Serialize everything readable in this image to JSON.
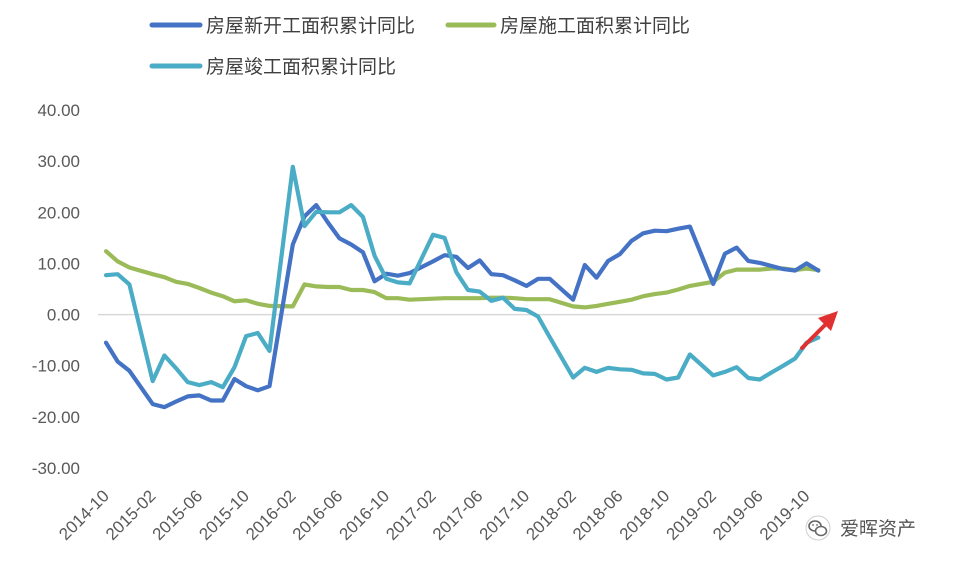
{
  "chart_data": {
    "type": "line",
    "title": "",
    "xlabel": "",
    "ylabel": "",
    "ylim": [
      -30,
      40
    ],
    "yticks": [
      "40.00",
      "30.00",
      "20.00",
      "10.00",
      "0.00",
      "-10.00",
      "-20.00",
      "-30.00"
    ],
    "x_tick_labels": [
      "2014-10",
      "2015-02",
      "2015-06",
      "2015-10",
      "2016-02",
      "2016-06",
      "2016-10",
      "2017-02",
      "2017-06",
      "2017-10",
      "2018-02",
      "2018-06",
      "2018-10",
      "2019-02",
      "2019-06",
      "2019-10"
    ],
    "x_start": "2014-10",
    "x_end": "2019-12",
    "grid": false,
    "legend": "top",
    "series": [
      {
        "name": "房屋新开工面积累计同比",
        "color": "#4472c4",
        "x": [
          "2014-10",
          "2014-11",
          "2014-12",
          "2015-02",
          "2015-03",
          "2015-04",
          "2015-05",
          "2015-06",
          "2015-07",
          "2015-08",
          "2015-09",
          "2015-10",
          "2015-11",
          "2015-12",
          "2016-02",
          "2016-03",
          "2016-04",
          "2016-05",
          "2016-06",
          "2016-07",
          "2016-08",
          "2016-09",
          "2016-10",
          "2016-11",
          "2016-12",
          "2017-02",
          "2017-03",
          "2017-04",
          "2017-05",
          "2017-06",
          "2017-07",
          "2017-08",
          "2017-09",
          "2017-10",
          "2017-11",
          "2017-12",
          "2018-02",
          "2018-03",
          "2018-04",
          "2018-05",
          "2018-06",
          "2018-07",
          "2018-08",
          "2018-09",
          "2018-10",
          "2018-11",
          "2018-12",
          "2019-02",
          "2019-03",
          "2019-04",
          "2019-05",
          "2019-06",
          "2019-07",
          "2019-08",
          "2019-09",
          "2019-10",
          "2019-11"
        ],
        "values": [
          -5.5,
          -9.2,
          -11.0,
          -17.5,
          -18.1,
          -17.0,
          -16.0,
          -15.8,
          -16.8,
          -16.8,
          -12.6,
          -14.0,
          -14.8,
          -14.0,
          13.7,
          19.2,
          21.4,
          18.0,
          14.9,
          13.7,
          12.2,
          6.5,
          8.0,
          7.6,
          8.1,
          10.4,
          11.6,
          11.3,
          9.1,
          10.6,
          7.9,
          7.7,
          6.7,
          5.6,
          7.0,
          7.0,
          2.9,
          9.7,
          7.2,
          10.5,
          11.8,
          14.4,
          15.9,
          16.4,
          16.3,
          16.8,
          17.2,
          6.0,
          11.9,
          13.1,
          10.5,
          10.1,
          9.5,
          8.9,
          8.6,
          10.0,
          8.6
        ]
      },
      {
        "name": "房屋施工面积累计同比",
        "color": "#9bbb59",
        "x": [
          "2014-10",
          "2014-11",
          "2014-12",
          "2015-02",
          "2015-03",
          "2015-04",
          "2015-05",
          "2015-06",
          "2015-07",
          "2015-08",
          "2015-09",
          "2015-10",
          "2015-11",
          "2015-12",
          "2016-02",
          "2016-03",
          "2016-04",
          "2016-05",
          "2016-06",
          "2016-07",
          "2016-08",
          "2016-09",
          "2016-10",
          "2016-11",
          "2016-12",
          "2017-02",
          "2017-03",
          "2017-04",
          "2017-05",
          "2017-06",
          "2017-07",
          "2017-08",
          "2017-09",
          "2017-10",
          "2017-11",
          "2017-12",
          "2018-02",
          "2018-03",
          "2018-04",
          "2018-05",
          "2018-06",
          "2018-07",
          "2018-08",
          "2018-09",
          "2018-10",
          "2018-11",
          "2018-12",
          "2019-02",
          "2019-03",
          "2019-04",
          "2019-05",
          "2019-06",
          "2019-07",
          "2019-08",
          "2019-09",
          "2019-10",
          "2019-11"
        ],
        "values": [
          12.4,
          10.4,
          9.2,
          7.9,
          7.3,
          6.4,
          6.0,
          5.2,
          4.3,
          3.6,
          2.6,
          2.8,
          2.1,
          1.7,
          1.6,
          5.9,
          5.5,
          5.4,
          5.4,
          4.8,
          4.8,
          4.4,
          3.2,
          3.2,
          2.9,
          3.1,
          3.2,
          3.2,
          3.2,
          3.2,
          3.3,
          3.3,
          3.2,
          3.0,
          3.0,
          3.0,
          1.6,
          1.4,
          1.7,
          2.1,
          2.5,
          2.9,
          3.6,
          4.0,
          4.3,
          4.9,
          5.6,
          6.4,
          8.2,
          8.8,
          8.8,
          8.8,
          9.0,
          9.0,
          8.7,
          9.0,
          8.7
        ]
      },
      {
        "name": "房屋竣工面积累计同比",
        "color": "#4bacc6",
        "x": [
          "2014-10",
          "2014-11",
          "2014-12",
          "2015-02",
          "2015-03",
          "2015-04",
          "2015-05",
          "2015-06",
          "2015-07",
          "2015-08",
          "2015-09",
          "2015-10",
          "2015-11",
          "2015-12",
          "2016-02",
          "2016-03",
          "2016-04",
          "2016-05",
          "2016-06",
          "2016-07",
          "2016-08",
          "2016-09",
          "2016-10",
          "2016-11",
          "2016-12",
          "2017-02",
          "2017-03",
          "2017-04",
          "2017-05",
          "2017-06",
          "2017-07",
          "2017-08",
          "2017-09",
          "2017-10",
          "2017-11",
          "2017-12",
          "2018-02",
          "2018-03",
          "2018-04",
          "2018-05",
          "2018-06",
          "2018-07",
          "2018-08",
          "2018-09",
          "2018-10",
          "2018-11",
          "2018-12",
          "2019-02",
          "2019-03",
          "2019-04",
          "2019-05",
          "2019-06",
          "2019-07",
          "2019-08",
          "2019-09",
          "2019-10",
          "2019-11"
        ],
        "values": [
          7.7,
          7.9,
          5.9,
          -13.0,
          -8.0,
          -10.5,
          -13.2,
          -13.8,
          -13.2,
          -14.2,
          -10.3,
          -4.2,
          -3.6,
          -7.1,
          28.9,
          17.3,
          20.1,
          20.0,
          20.0,
          21.4,
          19.1,
          11.5,
          7.0,
          6.3,
          6.1,
          15.6,
          15.0,
          8.3,
          4.8,
          4.5,
          2.7,
          3.3,
          1.1,
          0.9,
          -0.4,
          -4.4,
          -12.3,
          -10.4,
          -11.2,
          -10.4,
          -10.7,
          -10.8,
          -11.5,
          -11.6,
          -12.7,
          -12.3,
          -7.8,
          -11.9,
          -11.2,
          -10.3,
          -12.4,
          -12.7,
          -11.3,
          -10.0,
          -8.6,
          -5.5,
          -4.5
        ]
      }
    ]
  },
  "watermark": {
    "text": "爱晖资产",
    "icon": "wechat-icon"
  },
  "annotation": {
    "icon": "red-arrow-icon",
    "color": "#e03030"
  }
}
